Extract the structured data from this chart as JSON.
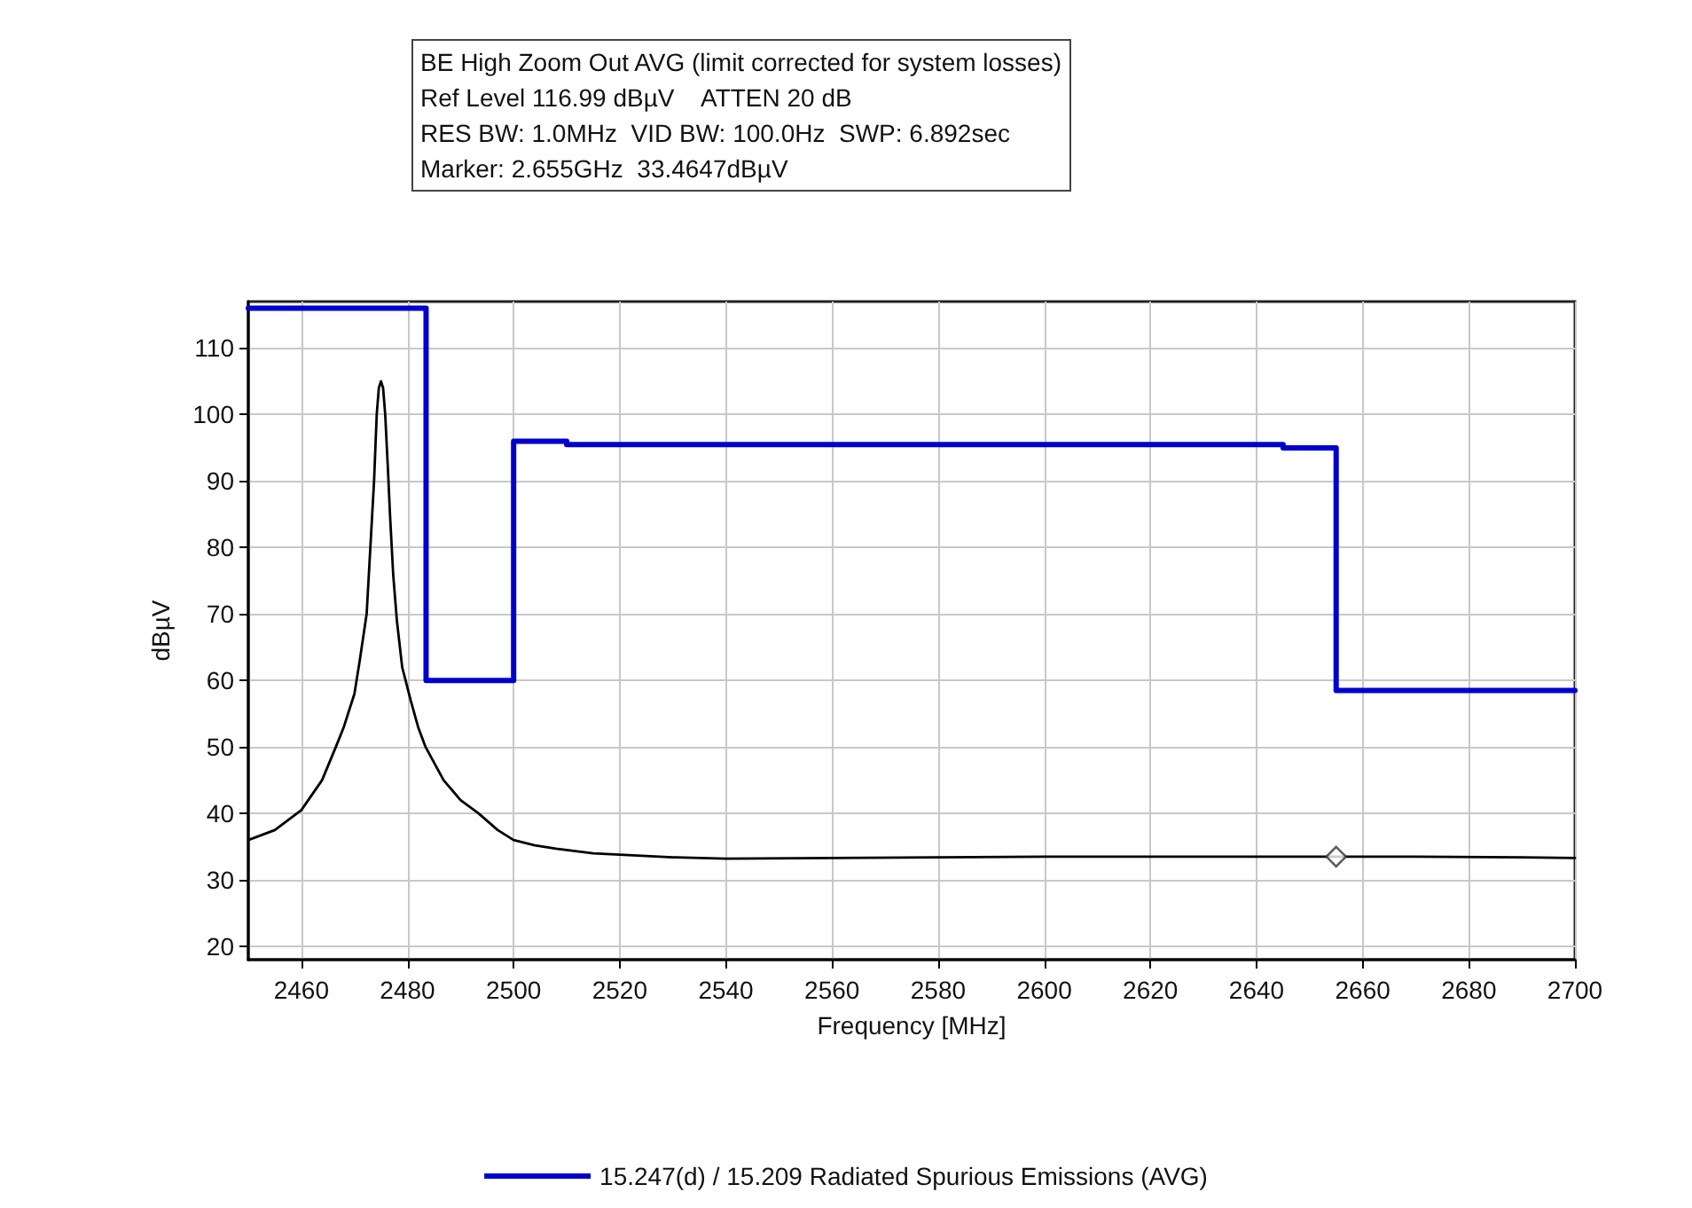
{
  "chart_data": {
    "type": "line",
    "xlabel": "Frequency [MHz]",
    "ylabel": "dBµV",
    "annotations": [
      "BE High Zoom Out AVG (limit corrected for system losses)",
      "Ref Level 116.99 dBµV    ATTEN 20 dB",
      "RES BW: 1.0MHz  VID BW: 100.0Hz  SWP: 6.892sec",
      "Marker: 2.655GHz  33.4647dBµV"
    ],
    "xlim": [
      2450,
      2700
    ],
    "xticks": [
      2460,
      2480,
      2500,
      2520,
      2540,
      2560,
      2580,
      2600,
      2620,
      2640,
      2660,
      2680,
      2700
    ],
    "ylim": [
      18,
      117
    ],
    "yticks": [
      20,
      30,
      40,
      50,
      60,
      70,
      80,
      90,
      100,
      110
    ],
    "grid": true,
    "legend": "bottom",
    "marker": "none",
    "series": [
      {
        "name": "15.247(d) / 15.209 Radiated Spurious Emissions (AVG)",
        "type": "step",
        "color": "#0000cc",
        "x": [
          2450,
          2483.5,
          2500,
          2510,
          2645,
          2655,
          2700
        ],
        "values": [
          116,
          60,
          96,
          95.5,
          95,
          58.5,
          58.5
        ]
      },
      {
        "color": "#000000",
        "x": [
          2450,
          2455,
          2460,
          2463.9,
          2466.5,
          2468,
          2470,
          2471,
          2472.3,
          2473,
          2473.7,
          2474.2,
          2474.6,
          2475,
          2475.4,
          2475.8,
          2476.3,
          2476.7,
          2477.3,
          2478,
          2479,
          2480.6,
          2482,
          2483.4,
          2486.8,
          2490,
          2493.4,
          2497,
          2500,
          2504,
          2508,
          2515,
          2520,
          2530,
          2540,
          2560,
          2580,
          2600,
          2620,
          2640,
          2655,
          2670,
          2690,
          2700
        ],
        "values": [
          36,
          37.5,
          40.5,
          45,
          50,
          53,
          58,
          63,
          70,
          80,
          90,
          100,
          104,
          105,
          104,
          100,
          92,
          85,
          76,
          69,
          62,
          57,
          53,
          50,
          45,
          42,
          40,
          37.5,
          36,
          35.2,
          34.7,
          34,
          33.8,
          33.4,
          33.2,
          33.3,
          33.4,
          33.5,
          33.5,
          33.5,
          33.5,
          33.5,
          33.4,
          33.3
        ]
      },
      {
        "type": "scatter",
        "color": "#333333",
        "marker": "diamond",
        "x": [
          2655
        ],
        "values": [
          33.5
        ]
      }
    ]
  }
}
